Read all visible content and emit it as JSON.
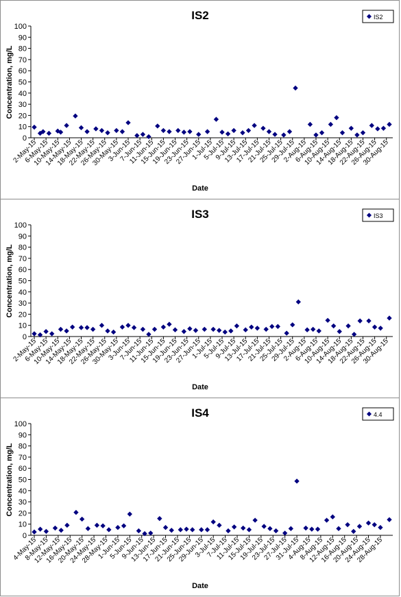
{
  "charts": [
    {
      "type": "scatter",
      "title": "IS2",
      "xlabel": "Date",
      "ylabel": "Concentration, mg/L",
      "legend": "IS2",
      "legend_position": "top-right",
      "ylim": [
        0,
        100
      ],
      "yticks": [
        0,
        10,
        20,
        30,
        40,
        50,
        60,
        70,
        80,
        90,
        100
      ],
      "xlim": [
        "2015-05-02",
        "2015-08-31"
      ],
      "xtick_labels": [
        "2-May-15",
        "6-May-15",
        "10-May-15",
        "14-May-15",
        "18-May-15",
        "22-May-15",
        "26-May-15",
        "30-May-15",
        "3-Jun-15",
        "7-Jun-15",
        "11-Jun-15",
        "15-Jun-15",
        "19-Jun-15",
        "23-Jun-15",
        "27-Jun-15",
        "1-Jul-15",
        "5-Jul-15",
        "9-Jul-15",
        "13-Jul-15",
        "17-Jul-15",
        "21-Jul-15",
        "25-Jul-15",
        "29-Jul-15",
        "2-Aug-15",
        "6-Aug-15",
        "10-Aug-15",
        "14-Aug-15",
        "18-Aug-15",
        "22-Aug-15",
        "26-Aug-15",
        "30-Aug-15"
      ],
      "series": [
        {
          "name": "IS2",
          "color": "#000080",
          "points": [
            [
              "2015-05-02",
              9.5
            ],
            [
              "2015-05-04",
              4
            ],
            [
              "2015-05-05",
              5.5
            ],
            [
              "2015-05-07",
              4
            ],
            [
              "2015-05-10",
              6
            ],
            [
              "2015-05-11",
              5
            ],
            [
              "2015-05-13",
              11
            ],
            [
              "2015-05-16",
              19.5
            ],
            [
              "2015-05-18",
              9
            ],
            [
              "2015-05-20",
              5.5
            ],
            [
              "2015-05-23",
              8
            ],
            [
              "2015-05-25",
              6.5
            ],
            [
              "2015-05-27",
              4.5
            ],
            [
              "2015-05-30",
              6.5
            ],
            [
              "2015-06-01",
              5.5
            ],
            [
              "2015-06-03",
              13.5
            ],
            [
              "2015-06-06",
              2
            ],
            [
              "2015-06-08",
              3
            ],
            [
              "2015-06-10",
              1
            ],
            [
              "2015-06-13",
              10.5
            ],
            [
              "2015-06-15",
              6.5
            ],
            [
              "2015-06-17",
              5.5
            ],
            [
              "2015-06-20",
              6.5
            ],
            [
              "2015-06-22",
              5
            ],
            [
              "2015-06-24",
              5.5
            ],
            [
              "2015-06-27",
              3
            ],
            [
              "2015-06-30",
              5.5
            ],
            [
              "2015-07-03",
              16.5
            ],
            [
              "2015-07-05",
              5
            ],
            [
              "2015-07-07",
              3.5
            ],
            [
              "2015-07-09",
              6.5
            ],
            [
              "2015-07-12",
              4.5
            ],
            [
              "2015-07-14",
              6.5
            ],
            [
              "2015-07-16",
              11
            ],
            [
              "2015-07-19",
              8.5
            ],
            [
              "2015-07-21",
              5.5
            ],
            [
              "2015-07-23",
              3
            ],
            [
              "2015-07-26",
              2.5
            ],
            [
              "2015-07-28",
              5.5
            ],
            [
              "2015-07-30",
              44.5
            ],
            [
              "2015-08-04",
              12
            ],
            [
              "2015-08-06",
              2.5
            ],
            [
              "2015-08-08",
              4.5
            ],
            [
              "2015-08-11",
              12
            ],
            [
              "2015-08-13",
              18
            ],
            [
              "2015-08-15",
              4.5
            ],
            [
              "2015-08-18",
              8.5
            ],
            [
              "2015-08-20",
              2.5
            ],
            [
              "2015-08-22",
              4.5
            ],
            [
              "2015-08-25",
              11
            ],
            [
              "2015-08-27",
              8
            ],
            [
              "2015-08-29",
              8.5
            ],
            [
              "2015-08-31",
              12
            ]
          ]
        }
      ]
    },
    {
      "type": "scatter",
      "title": "IS3",
      "xlabel": "Date",
      "ylabel": "Concentration, mg/L",
      "legend": "IS3",
      "legend_position": "top-right",
      "ylim": [
        0,
        100
      ],
      "yticks": [
        0,
        10,
        20,
        30,
        40,
        50,
        60,
        70,
        80,
        90,
        100
      ],
      "xlim": [
        "2015-05-02",
        "2015-08-31"
      ],
      "xtick_labels": [
        "2-May-15",
        "6-May-15",
        "10-May-15",
        "14-May-15",
        "18-May-15",
        "22-May-15",
        "26-May-15",
        "30-May-15",
        "3-Jun-15",
        "7-Jun-15",
        "11-Jun-15",
        "15-Jun-15",
        "19-Jun-15",
        "23-Jun-15",
        "27-Jun-15",
        "1-Jul-15",
        "5-Jul-15",
        "9-Jul-15",
        "13-Jul-15",
        "17-Jul-15",
        "21-Jul-15",
        "25-Jul-15",
        "29-Jul-15",
        "2-Aug-15",
        "6-Aug-15",
        "10-Aug-15",
        "14-Aug-15",
        "18-Aug-15",
        "22-Aug-15",
        "26-Aug-15",
        "30-Aug-15"
      ],
      "series": [
        {
          "name": "IS3",
          "color": "#000080",
          "points": [
            [
              "2015-05-02",
              2.5
            ],
            [
              "2015-05-04",
              1.5
            ],
            [
              "2015-05-06",
              4.5
            ],
            [
              "2015-05-08",
              2.5
            ],
            [
              "2015-05-11",
              6.5
            ],
            [
              "2015-05-13",
              5
            ],
            [
              "2015-05-15",
              8.5
            ],
            [
              "2015-05-18",
              8
            ],
            [
              "2015-05-20",
              8
            ],
            [
              "2015-05-22",
              6.5
            ],
            [
              "2015-05-25",
              10
            ],
            [
              "2015-05-27",
              5
            ],
            [
              "2015-05-29",
              4
            ],
            [
              "2015-06-01",
              8.5
            ],
            [
              "2015-06-03",
              10
            ],
            [
              "2015-06-05",
              8
            ],
            [
              "2015-06-08",
              6.5
            ],
            [
              "2015-06-10",
              2
            ],
            [
              "2015-06-12",
              6.5
            ],
            [
              "2015-06-15",
              8.5
            ],
            [
              "2015-06-17",
              11
            ],
            [
              "2015-06-19",
              6
            ],
            [
              "2015-06-22",
              4.5
            ],
            [
              "2015-06-24",
              7
            ],
            [
              "2015-06-26",
              5.5
            ],
            [
              "2015-06-29",
              6.5
            ],
            [
              "2015-07-02",
              6.5
            ],
            [
              "2015-07-04",
              5.5
            ],
            [
              "2015-07-06",
              4
            ],
            [
              "2015-07-08",
              5
            ],
            [
              "2015-07-10",
              9.5
            ],
            [
              "2015-07-13",
              6
            ],
            [
              "2015-07-15",
              8.5
            ],
            [
              "2015-07-17",
              7.5
            ],
            [
              "2015-07-20",
              6.5
            ],
            [
              "2015-07-22",
              9
            ],
            [
              "2015-07-24",
              9
            ],
            [
              "2015-07-27",
              3
            ],
            [
              "2015-07-29",
              10.5
            ],
            [
              "2015-07-31",
              31
            ],
            [
              "2015-08-03",
              6
            ],
            [
              "2015-08-05",
              6.5
            ],
            [
              "2015-08-07",
              5
            ],
            [
              "2015-08-10",
              14.5
            ],
            [
              "2015-08-12",
              9.5
            ],
            [
              "2015-08-14",
              4.5
            ],
            [
              "2015-08-17",
              9.5
            ],
            [
              "2015-08-19",
              2
            ],
            [
              "2015-08-21",
              14
            ],
            [
              "2015-08-24",
              14
            ],
            [
              "2015-08-26",
              8.5
            ],
            [
              "2015-08-28",
              7.5
            ],
            [
              "2015-08-31",
              16.5
            ]
          ]
        }
      ]
    },
    {
      "type": "scatter",
      "title": "IS4",
      "xlabel": "Date",
      "ylabel": "Concentration, mg/L",
      "legend": "4.4",
      "legend_position": "top-right",
      "ylim": [
        0,
        100
      ],
      "yticks": [
        0,
        10,
        20,
        30,
        40,
        50,
        60,
        70,
        80,
        90,
        100
      ],
      "xlim": [
        "2015-05-04",
        "2015-08-31"
      ],
      "xtick_labels": [
        "4-May-15",
        "8-May-15",
        "12-May-15",
        "16-May-15",
        "20-May-15",
        "24-May-15",
        "28-May-15",
        "1-Jun-15",
        "5-Jun-15",
        "9-Jun-15",
        "13-Jun-15",
        "17-Jun-15",
        "21-Jun-15",
        "25-Jun-15",
        "29-Jun-15",
        "3-Jul-15",
        "7-Jul-15",
        "11-Jul-15",
        "15-Jul-15",
        "19-Jul-15",
        "23-Jul-15",
        "27-Jul-15",
        "31-Jul-15",
        "4-Aug-15",
        "8-Aug-15",
        "12-Aug-15",
        "16-Aug-15",
        "20-Aug-15",
        "24-Aug-15",
        "28-Aug-15"
      ],
      "series": [
        {
          "name": "4.4",
          "color": "#000080",
          "points": [
            [
              "2015-05-04",
              3
            ],
            [
              "2015-05-06",
              5.5
            ],
            [
              "2015-05-08",
              3.5
            ],
            [
              "2015-05-11",
              6.5
            ],
            [
              "2015-05-13",
              4.5
            ],
            [
              "2015-05-15",
              9
            ],
            [
              "2015-05-18",
              20.5
            ],
            [
              "2015-05-20",
              14.5
            ],
            [
              "2015-05-22",
              6
            ],
            [
              "2015-05-25",
              9
            ],
            [
              "2015-05-27",
              8.5
            ],
            [
              "2015-05-29",
              5
            ],
            [
              "2015-06-01",
              7
            ],
            [
              "2015-06-03",
              8.5
            ],
            [
              "2015-06-05",
              19
            ],
            [
              "2015-06-08",
              4
            ],
            [
              "2015-06-10",
              1.5
            ],
            [
              "2015-06-12",
              2
            ],
            [
              "2015-06-15",
              15
            ],
            [
              "2015-06-17",
              7
            ],
            [
              "2015-06-19",
              4.5
            ],
            [
              "2015-06-22",
              5
            ],
            [
              "2015-06-24",
              5.5
            ],
            [
              "2015-06-26",
              5
            ],
            [
              "2015-06-29",
              5
            ],
            [
              "2015-07-01",
              5
            ],
            [
              "2015-07-03",
              12
            ],
            [
              "2015-07-05",
              9
            ],
            [
              "2015-07-08",
              4
            ],
            [
              "2015-07-10",
              7.5
            ],
            [
              "2015-07-13",
              6.5
            ],
            [
              "2015-07-15",
              5
            ],
            [
              "2015-07-17",
              13.5
            ],
            [
              "2015-07-20",
              8
            ],
            [
              "2015-07-22",
              6
            ],
            [
              "2015-07-24",
              4
            ],
            [
              "2015-07-27",
              2
            ],
            [
              "2015-07-29",
              6
            ],
            [
              "2015-07-31",
              48.5
            ],
            [
              "2015-08-03",
              6.5
            ],
            [
              "2015-08-05",
              5.5
            ],
            [
              "2015-08-07",
              5.5
            ],
            [
              "2015-08-10",
              13.5
            ],
            [
              "2015-08-12",
              16.5
            ],
            [
              "2015-08-14",
              6
            ],
            [
              "2015-08-17",
              9.5
            ],
            [
              "2015-08-19",
              3.5
            ],
            [
              "2015-08-21",
              8
            ],
            [
              "2015-08-24",
              11
            ],
            [
              "2015-08-26",
              9.5
            ],
            [
              "2015-08-28",
              7
            ],
            [
              "2015-08-31",
              14
            ]
          ]
        }
      ]
    }
  ]
}
